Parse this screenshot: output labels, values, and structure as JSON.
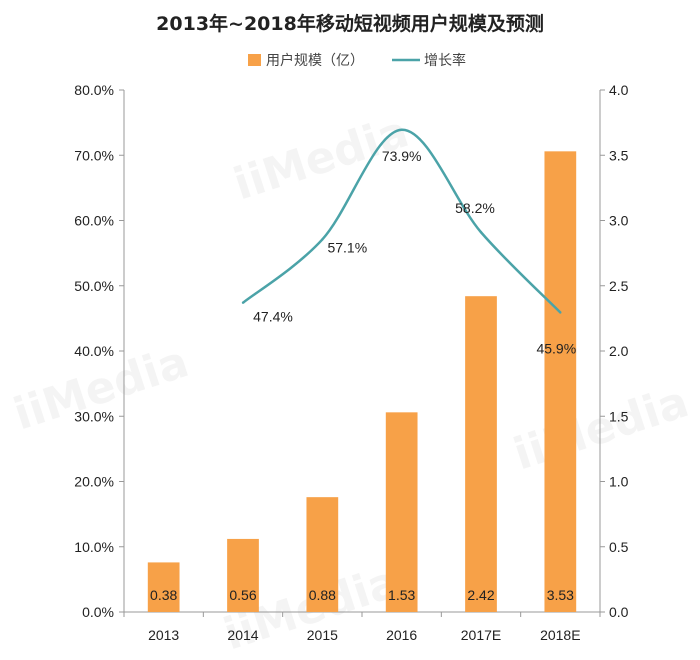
{
  "chart_data": {
    "type": "bar",
    "title": "2013年~2018年移动短视频用户规模及预测",
    "categories": [
      "2013",
      "2014",
      "2015",
      "2016",
      "2017E",
      "2018E"
    ],
    "series": [
      {
        "name": "用户规模（亿）",
        "type": "bar",
        "axis": "right",
        "values": [
          0.38,
          0.56,
          0.88,
          1.53,
          2.42,
          3.53
        ],
        "labels": [
          "0.38",
          "0.56",
          "0.88",
          "1.53",
          "2.42",
          "3.53"
        ],
        "color": "#F7A148"
      },
      {
        "name": "增长率",
        "type": "line",
        "axis": "left",
        "values": [
          null,
          47.4,
          57.1,
          73.9,
          58.2,
          45.9
        ],
        "labels": [
          "",
          "47.4%",
          "57.1%",
          "73.9%",
          "58.2%",
          "45.9%"
        ],
        "color": "#4BA3A8"
      }
    ],
    "yleft": {
      "min": 0,
      "max": 80,
      "ticks": [
        "0.0%",
        "10.0%",
        "20.0%",
        "30.0%",
        "40.0%",
        "50.0%",
        "60.0%",
        "70.0%",
        "80.0%"
      ]
    },
    "yright": {
      "min": 0,
      "max": 4,
      "ticks": [
        "0.0",
        "0.5",
        "1.0",
        "1.5",
        "2.0",
        "2.5",
        "3.0",
        "3.5",
        "4.0"
      ]
    },
    "legend": "top",
    "grid": false
  },
  "watermark": "iiMedia"
}
